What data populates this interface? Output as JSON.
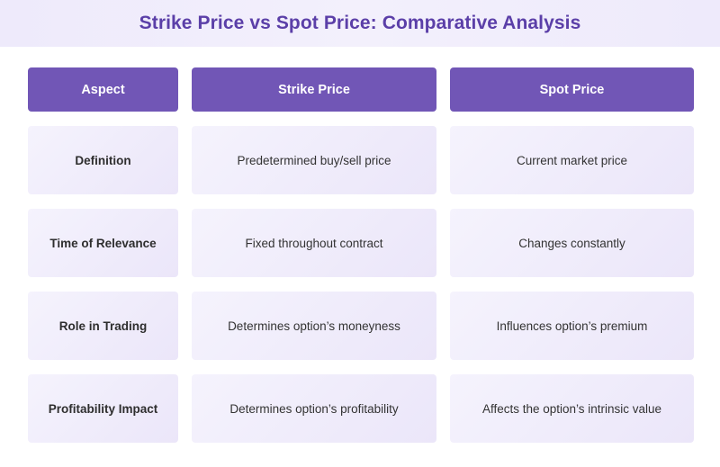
{
  "title": "Strike Price vs Spot Price: Comparative Analysis",
  "headers": [
    "Aspect",
    "Strike Price",
    "Spot Price"
  ],
  "rows": [
    {
      "aspect": "Definition",
      "strike": "Predetermined buy/sell price",
      "spot": "Current market price"
    },
    {
      "aspect": "Time of Relevance",
      "strike": "Fixed throughout contract",
      "spot": "Changes constantly"
    },
    {
      "aspect": "Role in Trading",
      "strike": "Determines option’s moneyness",
      "spot": "Influences option’s premium"
    },
    {
      "aspect": "Profitability Impact",
      "strike": "Determines option’s profitability",
      "spot": "Affects the option’s intrinsic value"
    }
  ],
  "colors": {
    "header_bg": "#7156b6",
    "title": "#5b3fa8",
    "cell_bg": "#efebfa"
  }
}
